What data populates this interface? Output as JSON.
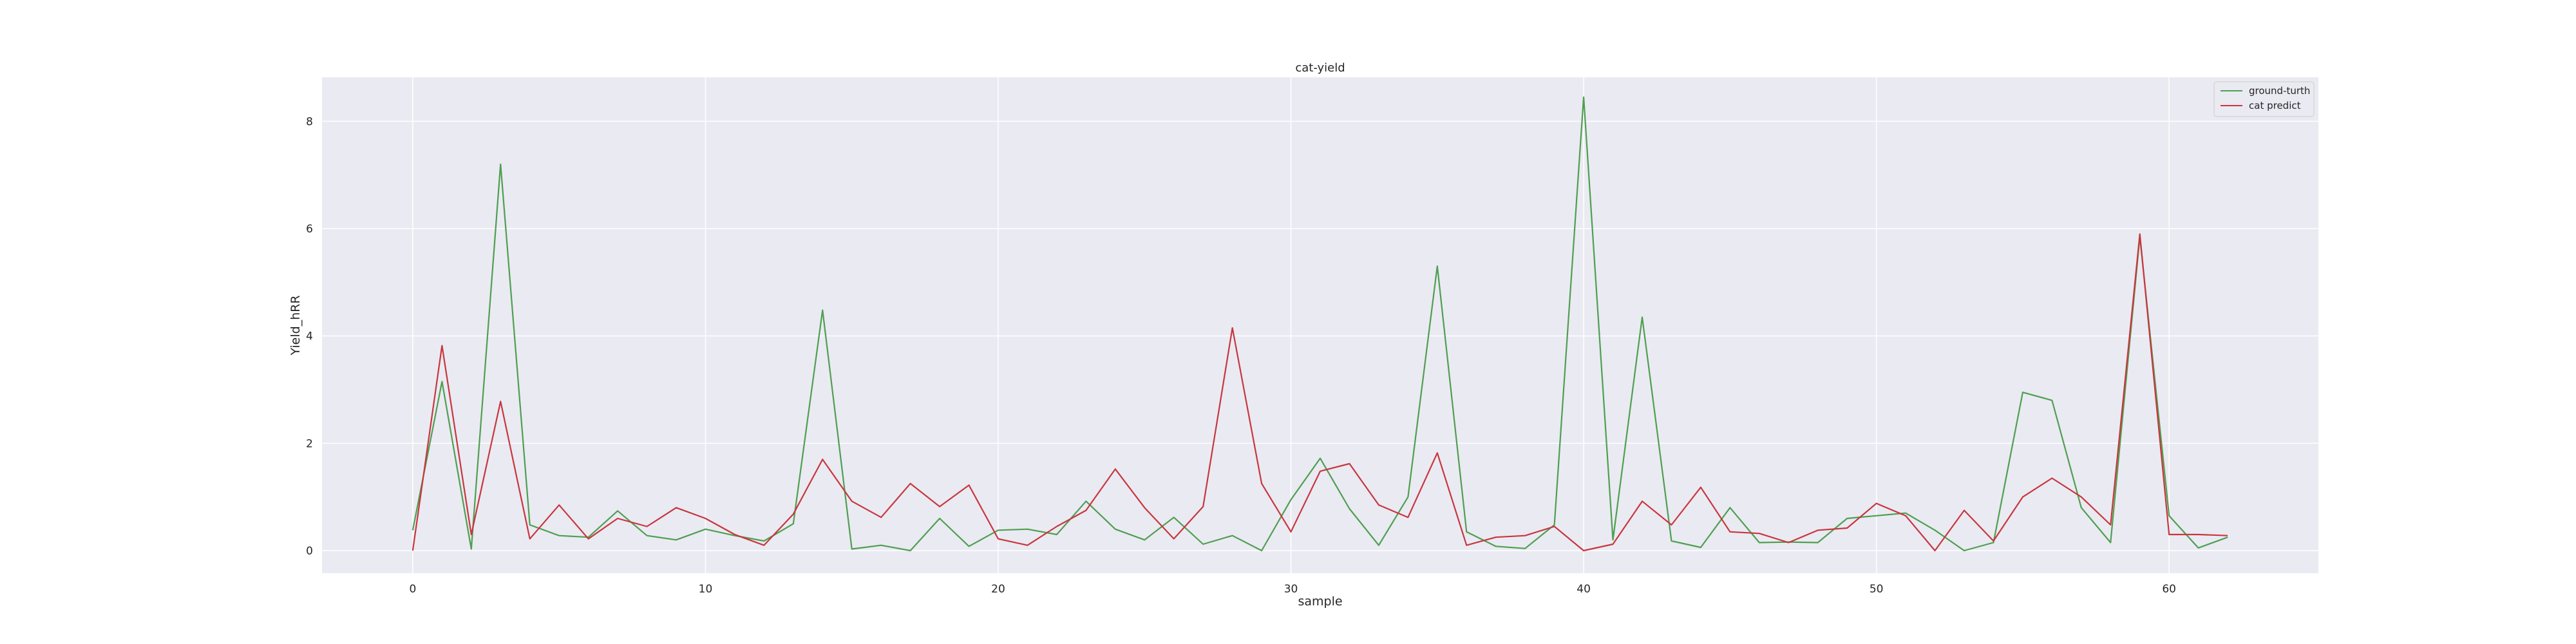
{
  "chart_data": {
    "type": "line",
    "title": "cat-yield",
    "xlabel": "sample",
    "ylabel": "Yield_hRR",
    "xlim": [
      -3.1,
      65.1
    ],
    "ylim": [
      -0.42,
      8.82
    ],
    "x_ticks": [
      0,
      10,
      20,
      30,
      40,
      50,
      60
    ],
    "y_ticks": [
      0,
      2,
      4,
      6,
      8
    ],
    "grid": true,
    "background": "#eaeaf2",
    "legend_position": "top-right",
    "x": [
      0,
      1,
      2,
      3,
      4,
      5,
      6,
      7,
      8,
      9,
      10,
      11,
      12,
      13,
      14,
      15,
      16,
      17,
      18,
      19,
      20,
      21,
      22,
      23,
      24,
      25,
      26,
      27,
      28,
      29,
      30,
      31,
      32,
      33,
      34,
      35,
      36,
      37,
      38,
      39,
      40,
      41,
      42,
      43,
      44,
      45,
      46,
      47,
      48,
      49,
      50,
      51,
      52,
      53,
      54,
      55,
      56,
      57,
      58,
      59,
      60,
      61,
      62
    ],
    "series": [
      {
        "name": "ground-turth",
        "color": "#4e9f50",
        "values": [
          0.38,
          3.15,
          0.03,
          7.2,
          0.48,
          0.28,
          0.25,
          0.74,
          0.28,
          0.2,
          0.4,
          0.28,
          0.18,
          0.5,
          4.48,
          0.03,
          0.1,
          0.0,
          0.6,
          0.08,
          0.38,
          0.4,
          0.3,
          0.92,
          0.4,
          0.2,
          0.62,
          0.12,
          0.28,
          0.0,
          0.95,
          1.72,
          0.78,
          0.1,
          1.0,
          5.3,
          0.35,
          0.08,
          0.04,
          0.48,
          8.45,
          0.2,
          4.35,
          0.18,
          0.06,
          0.8,
          0.15,
          0.16,
          0.15,
          0.6,
          0.65,
          0.7,
          0.38,
          0.0,
          0.15,
          2.95,
          2.8,
          0.8,
          0.15,
          5.85,
          0.65,
          0.05,
          0.25
        ]
      },
      {
        "name": "cat predict",
        "color": "#c8363e",
        "values": [
          0.0,
          3.82,
          0.3,
          2.78,
          0.22,
          0.85,
          0.22,
          0.6,
          0.45,
          0.8,
          0.6,
          0.3,
          0.1,
          0.68,
          1.7,
          0.92,
          0.62,
          1.25,
          0.82,
          1.22,
          0.22,
          0.1,
          0.45,
          0.75,
          1.52,
          0.8,
          0.22,
          0.82,
          4.15,
          1.25,
          0.35,
          1.48,
          1.62,
          0.85,
          0.62,
          1.82,
          0.1,
          0.25,
          0.28,
          0.45,
          0.0,
          0.12,
          0.92,
          0.48,
          1.18,
          0.35,
          0.32,
          0.15,
          0.38,
          0.42,
          0.88,
          0.65,
          0.0,
          0.75,
          0.18,
          1.0,
          1.35,
          1.0,
          0.48,
          5.9,
          0.3,
          0.3,
          0.28
        ]
      }
    ]
  }
}
